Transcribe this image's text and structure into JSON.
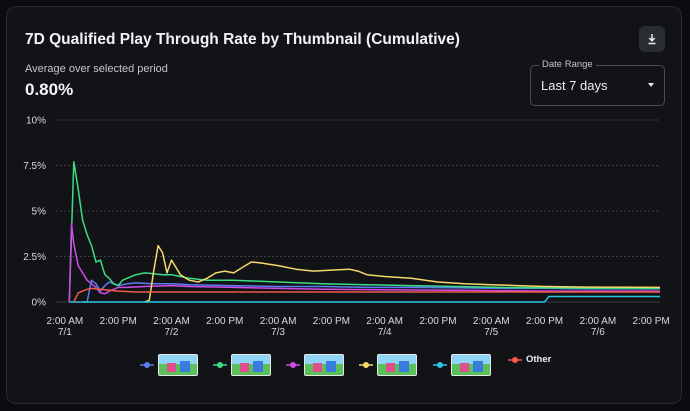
{
  "card": {
    "title": "7D Qualified Play Through Rate by Thumbnail (Cumulative)",
    "download_icon": "download-icon",
    "average_label": "Average over selected period",
    "average_value": "0.80%",
    "date_range": {
      "label": "Date Range",
      "value": "Last 7 days",
      "caret_icon": "caret-down-icon"
    }
  },
  "chart_data": {
    "type": "line",
    "y_ticks": [
      "0%",
      "2.5%",
      "5%",
      "7.5%",
      "10%"
    ],
    "ylim": [
      0,
      10
    ],
    "x_ticks": [
      {
        "t": 2,
        "l1": "2:00 AM",
        "l2": "7/1"
      },
      {
        "t": 14,
        "l1": "2:00 PM",
        "l2": ""
      },
      {
        "t": 26,
        "l1": "2:00 AM",
        "l2": "7/2"
      },
      {
        "t": 38,
        "l1": "2:00 PM",
        "l2": ""
      },
      {
        "t": 50,
        "l1": "2:00 AM",
        "l2": "7/3"
      },
      {
        "t": 62,
        "l1": "2:00 PM",
        "l2": ""
      },
      {
        "t": 74,
        "l1": "2:00 AM",
        "l2": "7/4"
      },
      {
        "t": 86,
        "l1": "2:00 PM",
        "l2": ""
      },
      {
        "t": 98,
        "l1": "2:00 AM",
        "l2": "7/5"
      },
      {
        "t": 110,
        "l1": "2:00 PM",
        "l2": ""
      },
      {
        "t": 122,
        "l1": "2:00 AM",
        "l2": "7/6"
      },
      {
        "t": 134,
        "l1": "2:00 PM",
        "l2": ""
      }
    ],
    "xlim": [
      0,
      136
    ],
    "grid": true,
    "legend_position": "bottom",
    "series": [
      {
        "color": "#5b7cf0",
        "legend": "thumbnail",
        "points": [
          [
            6,
            0
          ],
          [
            7,
            0
          ],
          [
            8,
            1.2
          ],
          [
            9,
            1.0
          ],
          [
            10,
            0.6
          ],
          [
            11,
            0.9
          ],
          [
            12,
            1.1
          ],
          [
            14,
            0.9
          ],
          [
            16,
            1.0
          ],
          [
            18,
            1.05
          ],
          [
            22,
            1.0
          ],
          [
            26,
            1.0
          ],
          [
            30,
            0.95
          ],
          [
            40,
            0.9
          ],
          [
            50,
            0.85
          ],
          [
            60,
            0.85
          ],
          [
            70,
            0.8
          ],
          [
            80,
            0.8
          ],
          [
            90,
            0.78
          ],
          [
            100,
            0.75
          ],
          [
            110,
            0.75
          ],
          [
            120,
            0.72
          ],
          [
            136,
            0.72
          ]
        ]
      },
      {
        "color": "#3ddc84",
        "legend": "thumbnail",
        "points": [
          [
            3,
            0
          ],
          [
            4,
            7.7
          ],
          [
            5,
            6.2
          ],
          [
            6,
            4.5
          ],
          [
            7,
            3.7
          ],
          [
            8,
            3.1
          ],
          [
            9,
            2.2
          ],
          [
            10,
            2.3
          ],
          [
            11,
            1.5
          ],
          [
            12,
            1.3
          ],
          [
            13,
            1.0
          ],
          [
            14,
            0.9
          ],
          [
            15,
            1.2
          ],
          [
            16,
            1.3
          ],
          [
            18,
            1.5
          ],
          [
            20,
            1.6
          ],
          [
            22,
            1.55
          ],
          [
            24,
            1.5
          ],
          [
            26,
            1.5
          ],
          [
            28,
            1.4
          ],
          [
            30,
            1.3
          ],
          [
            34,
            1.2
          ],
          [
            40,
            1.2
          ],
          [
            50,
            1.1
          ],
          [
            60,
            1.0
          ],
          [
            70,
            0.95
          ],
          [
            80,
            0.9
          ],
          [
            90,
            0.85
          ],
          [
            100,
            0.8
          ],
          [
            110,
            0.78
          ],
          [
            120,
            0.76
          ],
          [
            136,
            0.75
          ]
        ]
      },
      {
        "color": "#d04be6",
        "legend": "thumbnail",
        "points": [
          [
            3,
            0
          ],
          [
            3.5,
            4.3
          ],
          [
            4,
            3.2
          ],
          [
            5,
            2.0
          ],
          [
            6,
            1.6
          ],
          [
            7,
            1.2
          ],
          [
            8,
            1.0
          ],
          [
            9,
            0.8
          ],
          [
            10,
            0.5
          ],
          [
            11,
            0.45
          ],
          [
            12,
            0.6
          ],
          [
            14,
            0.8
          ],
          [
            16,
            0.8
          ],
          [
            20,
            0.85
          ],
          [
            26,
            0.9
          ],
          [
            30,
            0.85
          ],
          [
            40,
            0.8
          ],
          [
            50,
            0.75
          ],
          [
            60,
            0.7
          ],
          [
            70,
            0.68
          ],
          [
            80,
            0.66
          ],
          [
            90,
            0.65
          ],
          [
            100,
            0.62
          ],
          [
            110,
            0.6
          ],
          [
            120,
            0.6
          ],
          [
            136,
            0.6
          ]
        ]
      },
      {
        "color": "#f5d96b",
        "legend": "thumbnail",
        "points": [
          [
            20,
            0
          ],
          [
            21,
            0.1
          ],
          [
            22,
            1.7
          ],
          [
            23,
            3.1
          ],
          [
            24,
            2.7
          ],
          [
            25,
            1.6
          ],
          [
            26,
            2.3
          ],
          [
            27,
            1.9
          ],
          [
            28,
            1.5
          ],
          [
            30,
            1.2
          ],
          [
            32,
            1.1
          ],
          [
            34,
            1.3
          ],
          [
            36,
            1.6
          ],
          [
            38,
            1.7
          ],
          [
            40,
            1.6
          ],
          [
            42,
            1.9
          ],
          [
            44,
            2.2
          ],
          [
            46,
            2.15
          ],
          [
            50,
            2.0
          ],
          [
            54,
            1.8
          ],
          [
            58,
            1.7
          ],
          [
            62,
            1.75
          ],
          [
            66,
            1.8
          ],
          [
            68,
            1.7
          ],
          [
            70,
            1.5
          ],
          [
            74,
            1.4
          ],
          [
            80,
            1.3
          ],
          [
            86,
            1.1
          ],
          [
            92,
            1.0
          ],
          [
            98,
            0.95
          ],
          [
            104,
            0.9
          ],
          [
            110,
            0.85
          ],
          [
            120,
            0.82
          ],
          [
            136,
            0.8
          ]
        ]
      },
      {
        "color": "#29c5e0",
        "legend": "thumbnail",
        "points": [
          [
            3,
            0
          ],
          [
            100,
            0
          ],
          [
            110,
            0
          ],
          [
            111,
            0.3
          ],
          [
            112,
            0.3
          ],
          [
            136,
            0.3
          ]
        ]
      },
      {
        "color": "#f05a4a",
        "legend": "Other",
        "points": [
          [
            4,
            0
          ],
          [
            5,
            0.5
          ],
          [
            6,
            0.6
          ],
          [
            7,
            0.7
          ],
          [
            8,
            0.75
          ],
          [
            10,
            0.7
          ],
          [
            14,
            0.6
          ],
          [
            18,
            0.55
          ],
          [
            26,
            0.55
          ],
          [
            40,
            0.55
          ],
          [
            60,
            0.55
          ],
          [
            80,
            0.55
          ],
          [
            100,
            0.55
          ],
          [
            120,
            0.55
          ],
          [
            136,
            0.55
          ]
        ]
      }
    ]
  },
  "legend": {
    "items": [
      {
        "type": "thumbnail",
        "color": "#5b7cf0"
      },
      {
        "type": "thumbnail",
        "color": "#3ddc84"
      },
      {
        "type": "thumbnail",
        "color": "#d04be6"
      },
      {
        "type": "thumbnail",
        "color": "#f5d96b"
      },
      {
        "type": "thumbnail",
        "color": "#29c5e0"
      },
      {
        "type": "label",
        "color": "#f05a4a",
        "text": "Other"
      }
    ]
  }
}
